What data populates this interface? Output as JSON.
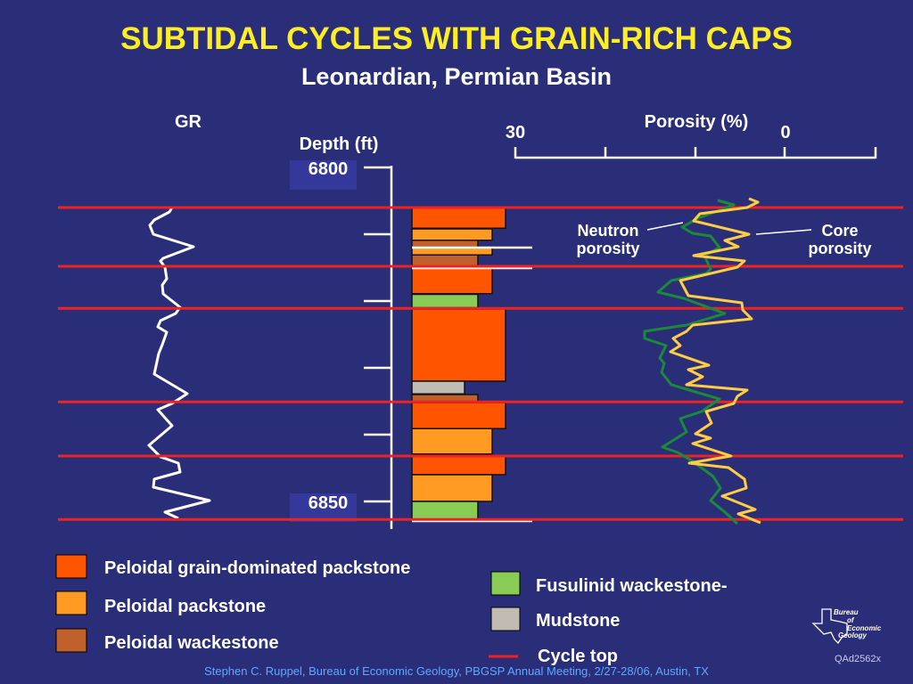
{
  "title": "SUBTIDAL CYCLES WITH GRAIN-RICH CAPS",
  "subtitle": "Leonardian, Permian Basin",
  "gr_label": "GR",
  "depth": {
    "label": "Depth (ft)",
    "top": "6800",
    "bottom": "6850",
    "top_value": 6800,
    "bottom_value": 6850
  },
  "porosity": {
    "label": "Porosity (%)",
    "left": "30",
    "right": "0"
  },
  "curve_labels": {
    "neutron": [
      "Neutron",
      "porosity"
    ],
    "core": [
      "Core",
      "porosity"
    ]
  },
  "colors": {
    "background": "#2a2e78",
    "grain": "#ff5500",
    "pack": "#ff9a22",
    "wack": "#c0602a",
    "fusulinid": "#88cc55",
    "mud": "#c0bcb4",
    "cycle_top": "#ee2222",
    "neutron": "#1a8a3a",
    "core": "#ffcc44",
    "title": "#ffee22",
    "footer": "#5ea8ff"
  },
  "cycle_tops_ft": [
    6806.0,
    6814.8,
    6821.1,
    6835.1,
    6843.2,
    6852.7
  ],
  "beds": [
    {
      "lith": "grain",
      "texture": 4,
      "top": 6806.1,
      "base": 6809.1
    },
    {
      "lith": "pack",
      "texture": 3,
      "top": 6809.2,
      "base": 6810.9
    },
    {
      "lith": "wack",
      "texture": 2,
      "top": 6810.9,
      "base": 6812.0
    },
    {
      "lith": "pack",
      "texture": 3,
      "top": 6812.0,
      "base": 6813.1
    },
    {
      "lith": "wack",
      "texture": 2,
      "top": 6813.1,
      "base": 6814.8
    },
    {
      "lith": "grain",
      "texture": 3,
      "top": 6815.1,
      "base": 6818.9
    },
    {
      "lith": "fusulinid",
      "texture": 2,
      "top": 6819.0,
      "base": 6821.0
    },
    {
      "lith": "grain",
      "texture": 4,
      "top": 6821.2,
      "base": 6832.0
    },
    {
      "lith": "mud",
      "texture": 1,
      "top": 6832.0,
      "base": 6833.9
    },
    {
      "lith": "wack",
      "texture": 2,
      "top": 6834.0,
      "base": 6835.1
    },
    {
      "lith": "grain",
      "texture": 4,
      "top": 6835.2,
      "base": 6839.1
    },
    {
      "lith": "pack",
      "texture": 3,
      "top": 6839.1,
      "base": 6842.9
    },
    {
      "lith": "grain",
      "texture": 4,
      "top": 6843.2,
      "base": 6846.0
    },
    {
      "lith": "pack",
      "texture": 3,
      "top": 6846.0,
      "base": 6850.0
    },
    {
      "lith": "fusulinid",
      "texture": 2,
      "top": 6850.0,
      "base": 6852.7
    }
  ],
  "legend": {
    "grain": "Peloidal grain-dominated packstone",
    "pack": "Peloidal packstone",
    "wack": "Peloidal wackestone",
    "fusulinid": "Fusulinid wackestone-",
    "mud": "Mudstone",
    "cycle": "Cycle top"
  },
  "logo": [
    "Bureau",
    "of",
    "Economic",
    "Geology"
  ],
  "figure_id": "QAd2562x",
  "footer": "Stephen C. Ruppel, Bureau of Economic Geology, PBGSP Annual Meeting, 2/27-28/06, Austin, TX"
}
